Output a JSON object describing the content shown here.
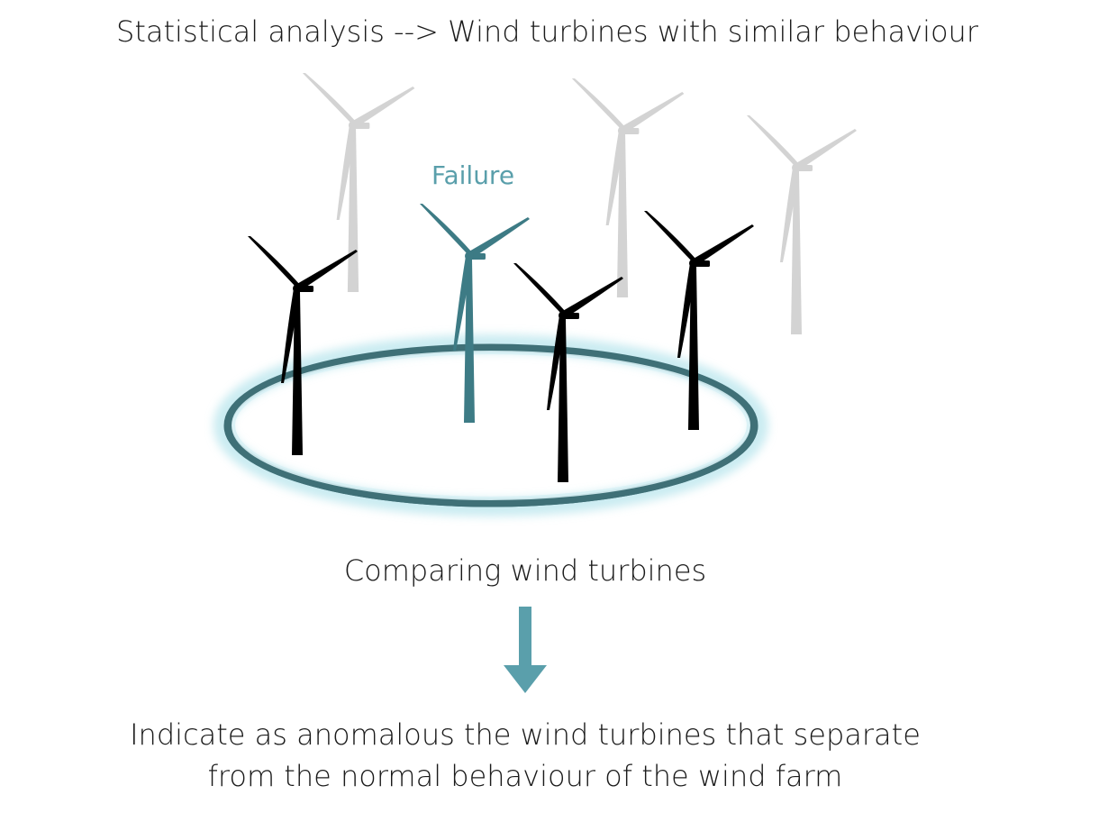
{
  "title": "Statistical analysis --> Wind turbines with similar behaviour",
  "failure_label": "Failure",
  "caption": "Comparing wind turbines",
  "conclusion": {
    "line1": "Indicate as anomalous the wind turbines that separate",
    "line2": "from the normal behaviour of the wind farm"
  },
  "colors": {
    "background": "#ffffff",
    "text": "#1a1a1a",
    "accent": "#5a9fab",
    "failure_turbine": "#3d7b85",
    "ring": "#3f7077",
    "ring_glow": "#9fdce6",
    "normal_turbine": "#000000",
    "background_turbine": "#d3d3d3"
  },
  "icons": {
    "turbine": "wind-turbine-icon",
    "arrow": "arrow-down-icon"
  }
}
